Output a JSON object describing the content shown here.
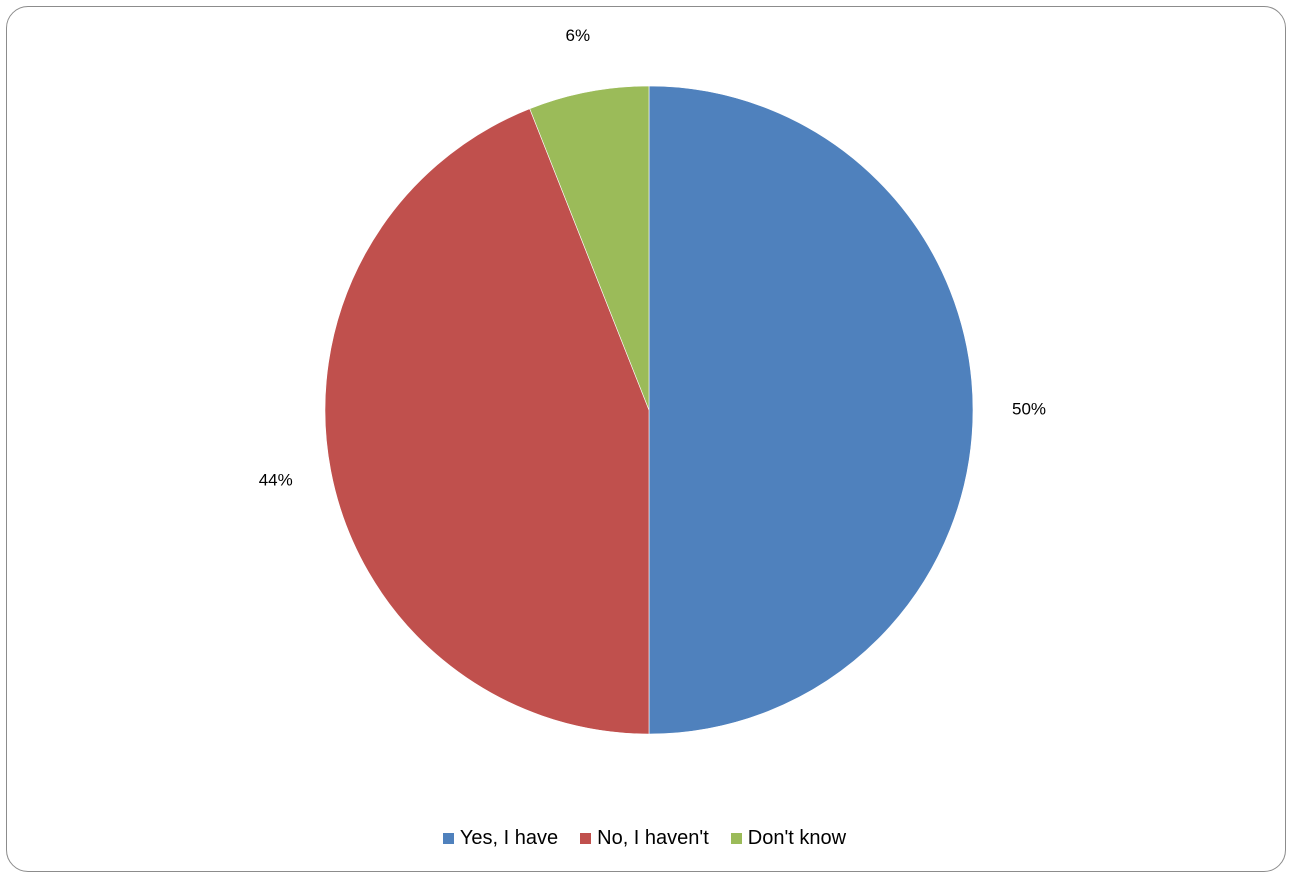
{
  "clipped_caption": "",
  "chart_data": {
    "type": "pie",
    "categories": [
      "Yes, I have",
      "No, I haven't",
      "Don't know"
    ],
    "values": [
      50,
      44,
      6
    ],
    "value_labels": [
      "50%",
      "44%",
      "6%"
    ],
    "colors": [
      "#4f81bd",
      "#c0504d",
      "#9bbb59"
    ],
    "start_angle": "12 o'clock",
    "direction": "clockwise",
    "legend_position": "bottom",
    "title": ""
  }
}
